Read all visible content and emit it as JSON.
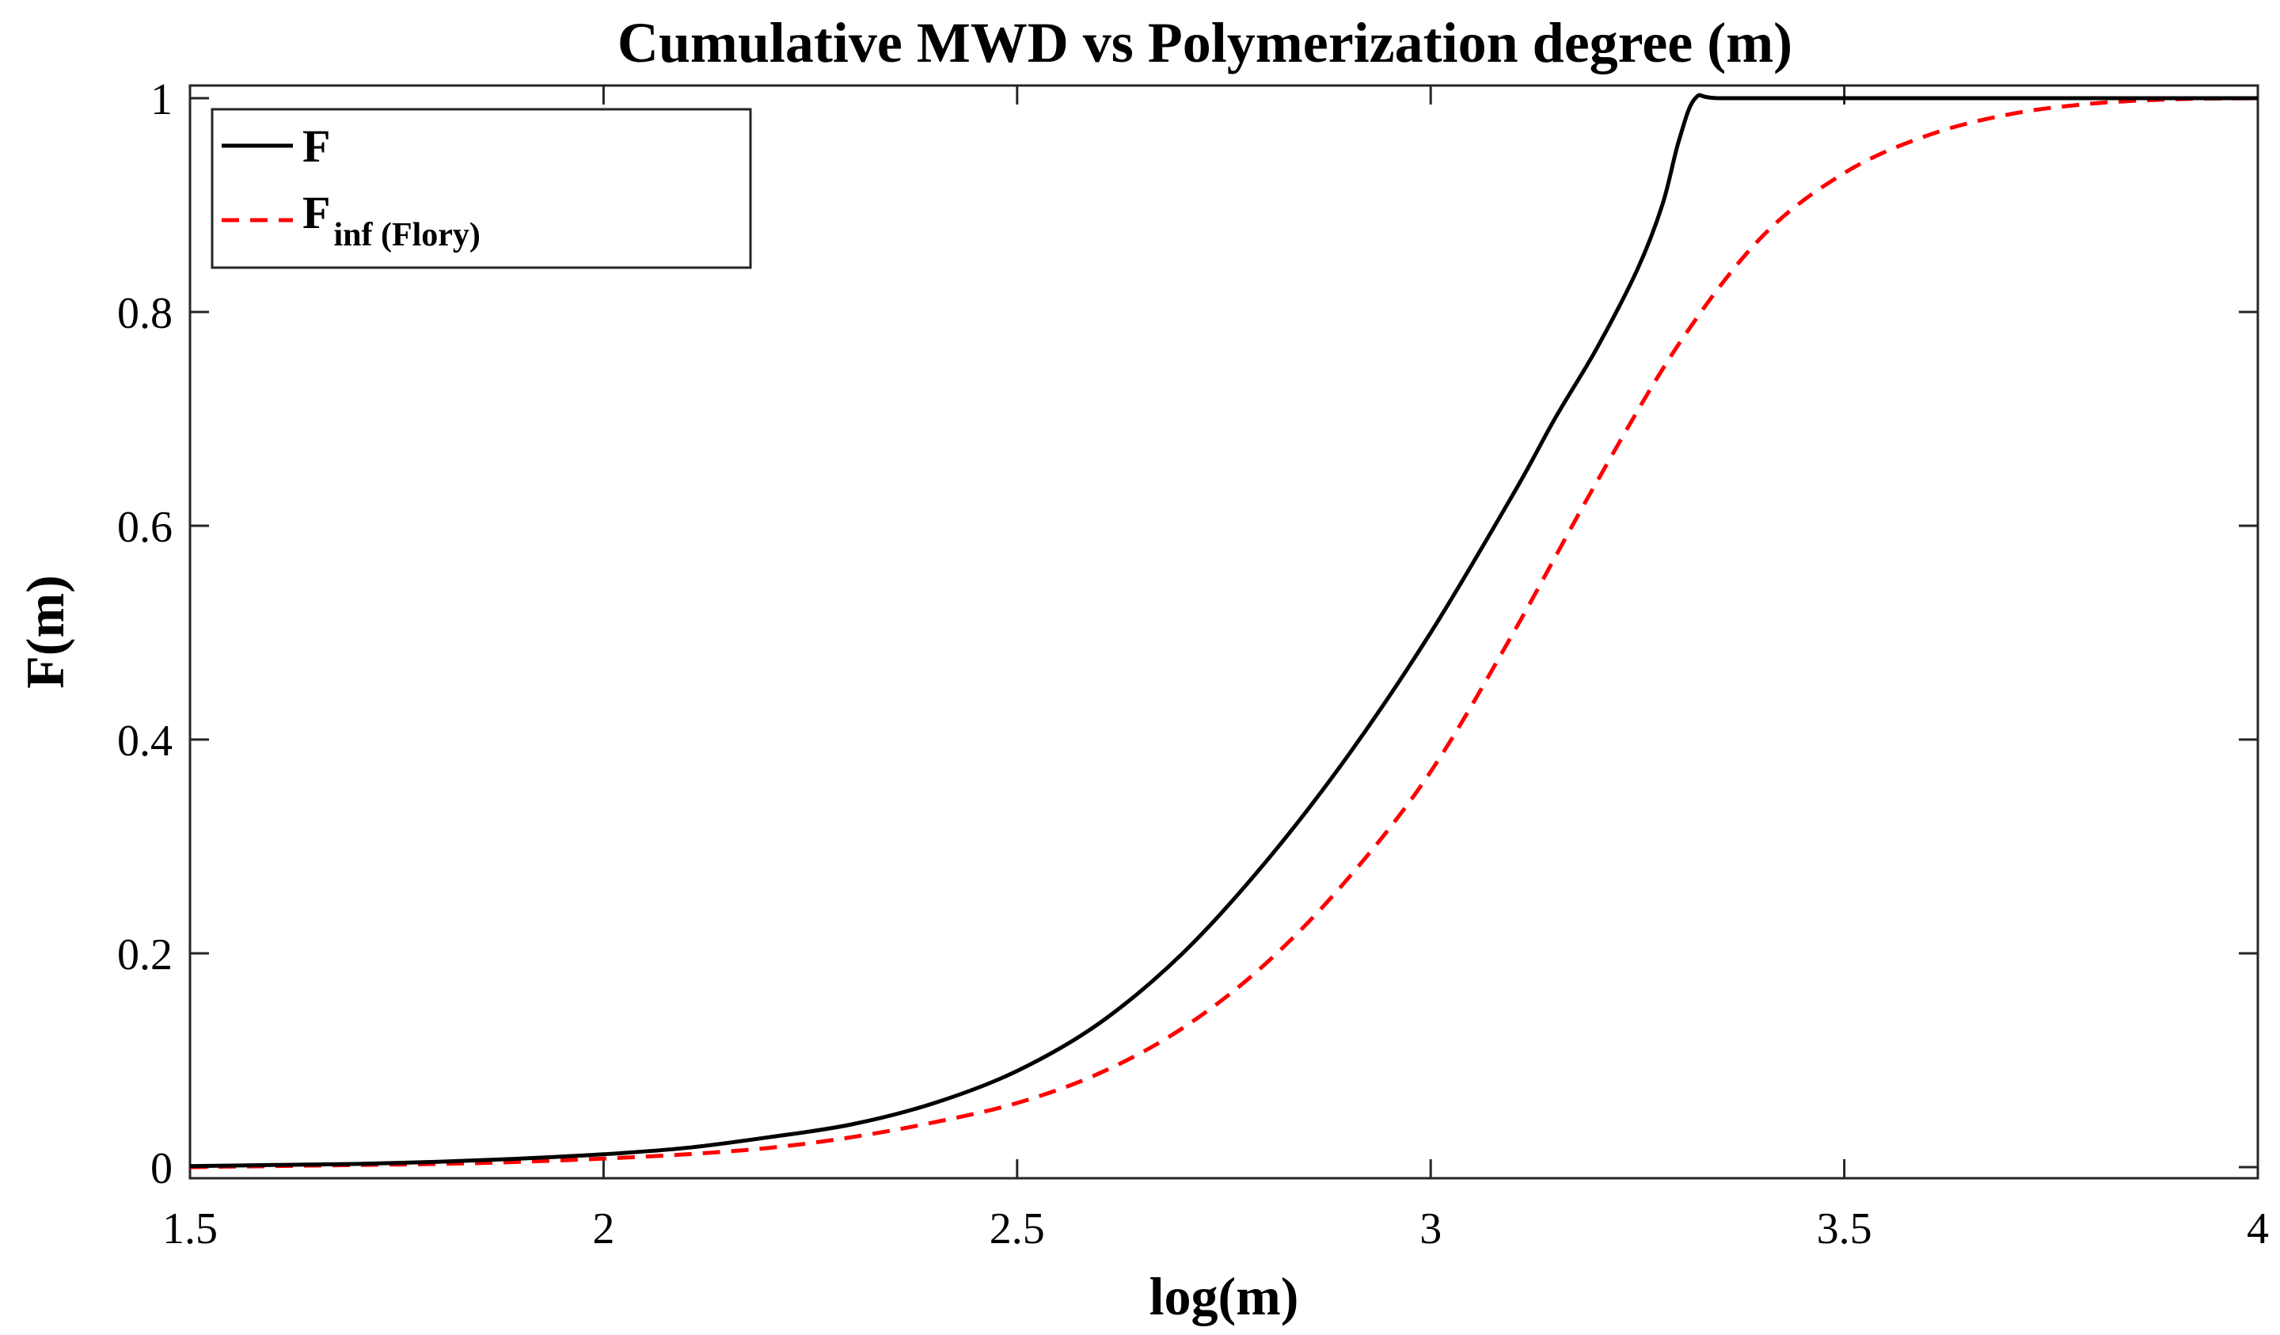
{
  "chart_data": {
    "type": "line",
    "title": "Cumulative MWD vs Polymerization degree (m)",
    "xlabel": "log(m)",
    "ylabel": "F(m)",
    "xlim": [
      1.5,
      4
    ],
    "ylim": [
      0,
      1
    ],
    "xticks": [
      1.5,
      2,
      2.5,
      3,
      3.5,
      4
    ],
    "xtick_labels": [
      "1.5",
      "2",
      "2.5",
      "3",
      "3.5",
      "4"
    ],
    "yticks": [
      0,
      0.2,
      0.4,
      0.6,
      0.8,
      1
    ],
    "ytick_labels": [
      "0",
      "0.2",
      "0.4",
      "0.6",
      "0.8",
      "1"
    ],
    "grid": false,
    "legend_position": "top-left",
    "series": [
      {
        "name": "F",
        "legend_main": "F",
        "legend_sub": "",
        "color": "#000000",
        "style": "solid",
        "x": [
          1.5,
          1.6,
          1.7,
          1.8,
          1.9,
          2.0,
          2.1,
          2.2,
          2.3,
          2.4,
          2.5,
          2.6,
          2.7,
          2.8,
          2.9,
          3.0,
          3.1,
          3.15,
          3.2,
          3.25,
          3.28,
          3.3,
          3.32,
          3.35,
          3.5,
          3.75,
          4.0
        ],
        "y": [
          0.001,
          0.002,
          0.003,
          0.005,
          0.008,
          0.012,
          0.018,
          0.028,
          0.04,
          0.06,
          0.09,
          0.135,
          0.2,
          0.285,
          0.385,
          0.5,
          0.63,
          0.7,
          0.765,
          0.84,
          0.9,
          0.96,
          1.0,
          1.0,
          1.0,
          1.0,
          1.0
        ]
      },
      {
        "name": "F_inf (Flory)",
        "legend_main": "F",
        "legend_sub": "inf (Flory)",
        "color": "#ff0000",
        "style": "dashed",
        "x": [
          1.5,
          1.6,
          1.7,
          1.8,
          1.9,
          2.0,
          2.1,
          2.2,
          2.3,
          2.4,
          2.5,
          2.6,
          2.7,
          2.8,
          2.9,
          3.0,
          3.1,
          3.2,
          3.3,
          3.4,
          3.5,
          3.6,
          3.7,
          3.8,
          3.9,
          4.0
        ],
        "y": [
          0.0,
          0.001,
          0.002,
          0.003,
          0.005,
          0.008,
          0.012,
          0.018,
          0.028,
          0.042,
          0.06,
          0.088,
          0.13,
          0.19,
          0.27,
          0.37,
          0.5,
          0.64,
          0.77,
          0.87,
          0.93,
          0.965,
          0.985,
          0.995,
          0.999,
          1.0
        ]
      }
    ]
  }
}
